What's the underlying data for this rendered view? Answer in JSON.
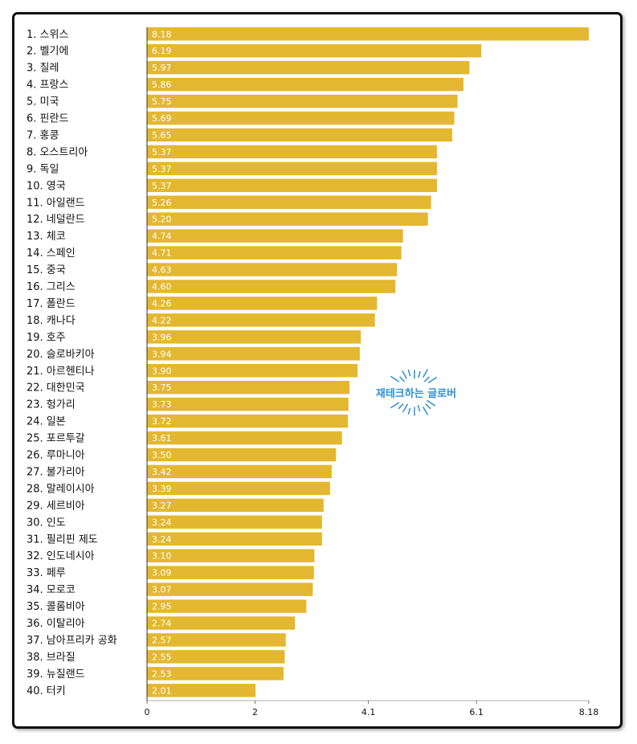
{
  "chart_data": {
    "type": "bar",
    "orientation": "horizontal",
    "categories": [
      "1. 스위스",
      "2. 벨기에",
      "3. 칠레",
      "4. 프랑스",
      "5. 미국",
      "6. 핀란드",
      "7. 홍콩",
      "8. 오스트리아",
      "9. 독일",
      "10. 영국",
      "11. 아일랜드",
      "12. 네덜란드",
      "13. 체코",
      "14. 스페인",
      "15. 중국",
      "16. 그리스",
      "17. 폴란드",
      "18. 캐나다",
      "19. 호주",
      "20. 슬로바키아",
      "21. 아르헨티나",
      "22. 대한민국",
      "23. 헝가리",
      "24. 일본",
      "25. 포르투갈",
      "26. 루마니아",
      "27. 불가리아",
      "28. 말레이시아",
      "29. 세르비아",
      "30. 인도",
      "31. 필리핀 제도",
      "32. 인도네시아",
      "33. 페루",
      "34. 모로코",
      "35. 콜롬비아",
      "36. 이탈리아",
      "37. 남아프리카 공화",
      "38. 브라질",
      "39. 뉴질랜드",
      "40. 터키"
    ],
    "values": [
      8.18,
      6.19,
      5.97,
      5.86,
      5.75,
      5.69,
      5.65,
      5.37,
      5.37,
      5.37,
      5.26,
      5.2,
      4.74,
      4.71,
      4.63,
      4.6,
      4.26,
      4.22,
      3.96,
      3.94,
      3.9,
      3.75,
      3.73,
      3.72,
      3.61,
      3.5,
      3.42,
      3.39,
      3.27,
      3.24,
      3.24,
      3.1,
      3.09,
      3.07,
      2.95,
      2.74,
      2.57,
      2.55,
      2.53,
      2.01
    ],
    "value_labels": [
      "8.18",
      "6.19",
      "5.97",
      "5.86",
      "5.75",
      "5.69",
      "5.65",
      "5.37",
      "5.37",
      "5.37",
      "5.26",
      "5.20",
      "4.74",
      "4.71",
      "4.63",
      "4.60",
      "4.26",
      "4.22",
      "3.96",
      "3.94",
      "3.90",
      "3.75",
      "3.73",
      "3.72",
      "3.61",
      "3.50",
      "3.42",
      "3.39",
      "3.27",
      "3.24",
      "3.24",
      "3.10",
      "3.09",
      "3.07",
      "2.95",
      "2.74",
      "2.57",
      "2.55",
      "2.53",
      "2.01"
    ],
    "x_ticks": [
      0,
      2,
      4.1,
      6.1,
      8.18
    ],
    "x_tick_labels": [
      "0",
      "2",
      "4.1",
      "6.1",
      "8.18"
    ],
    "xlim": [
      0,
      8.18
    ],
    "bar_color": "#e3b830",
    "grid": false,
    "legend": "none"
  },
  "watermark": {
    "text": "재테크하는 글로버",
    "color": "#2f8fd4"
  }
}
